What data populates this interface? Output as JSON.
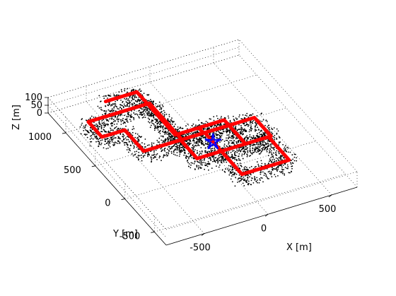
{
  "chart_data": {
    "type": "scatter",
    "title": "",
    "xlabel": "X [m]",
    "ylabel": "Y [m]",
    "zlabel": "Z [m]",
    "view": "3d",
    "xlim": [
      -800,
      700
    ],
    "ylim": [
      -700,
      1300
    ],
    "zlim": [
      0,
      100
    ],
    "x_ticks": [
      -500,
      0,
      500
    ],
    "x_tick_labels": [
      "-500",
      "0",
      "500"
    ],
    "y_ticks": [
      -500,
      0,
      500,
      1000
    ],
    "y_tick_labels": [
      "-500",
      "0",
      "500",
      "1000"
    ],
    "z_ticks": [
      0,
      50,
      100
    ],
    "z_tick_labels": [
      "0",
      "50",
      "100"
    ],
    "grid": true,
    "legend": "none",
    "colors": {
      "point_cloud": "#000000",
      "trajectory": "#ff0000",
      "marker": "#0000ff"
    },
    "series": [
      {
        "type": "line",
        "color": "#ff0000",
        "points": [
          [
            -380,
            1230
          ],
          [
            -135,
            1230
          ],
          [
            -135,
            1050
          ],
          [
            -600,
            1050
          ],
          [
            -600,
            820
          ],
          [
            -420,
            820
          ],
          [
            -420,
            500
          ],
          [
            -120,
            500
          ],
          [
            -120,
            1050
          ],
          [
            -135,
            1050
          ],
          [
            -135,
            580
          ],
          [
            50,
            580
          ],
          [
            50,
            500
          ],
          [
            450,
            500
          ],
          [
            450,
            220
          ],
          [
            60,
            220
          ],
          [
            60,
            500
          ],
          [
            -130,
            500
          ],
          [
            -130,
            220
          ],
          [
            60,
            220
          ],
          [
            60,
            -130
          ],
          [
            430,
            -130
          ],
          [
            430,
            220
          ],
          [
            250,
            220
          ],
          [
            250,
            580
          ],
          [
            50,
            580
          ]
        ]
      },
      {
        "type": "marker",
        "marker": "star",
        "color": "#0000ff",
        "x": 60,
        "y": 360
      }
    ]
  }
}
